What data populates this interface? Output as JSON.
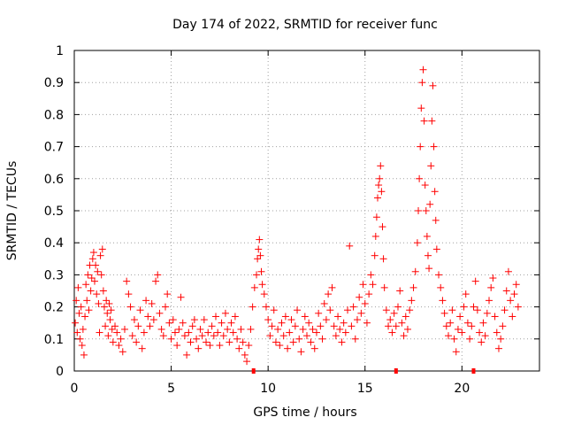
{
  "chart_data": {
    "type": "scatter",
    "title": "Day 174 of 2022, SRMTID for receiver func",
    "xlabel": "GPS time / hours",
    "ylabel": "SRMTID / TECUs",
    "xlim": [
      0,
      24
    ],
    "ylim": [
      0,
      1
    ],
    "xticks": [
      0,
      5,
      10,
      15,
      20
    ],
    "xtick_labels": [
      "0",
      "5",
      "10",
      "15",
      "20"
    ],
    "yticks": [
      0,
      0.1,
      0.2,
      0.3,
      0.4,
      0.5,
      0.6,
      0.7,
      0.8,
      0.9,
      1
    ],
    "ytick_labels": [
      "0",
      "0.1",
      "0.2",
      "0.3",
      "0.4",
      "0.5",
      "0.6",
      "0.7",
      "0.8",
      "0.9",
      "1"
    ],
    "grid": true,
    "marker": "+",
    "color": "#ff0000",
    "series": [
      {
        "name": "SRMTID",
        "points": [
          [
            0.05,
            0.15
          ],
          [
            0.1,
            0.22
          ],
          [
            0.15,
            0.12
          ],
          [
            0.2,
            0.26
          ],
          [
            0.25,
            0.18
          ],
          [
            0.3,
            0.1
          ],
          [
            0.35,
            0.2
          ],
          [
            0.4,
            0.08
          ],
          [
            0.45,
            0.13
          ],
          [
            0.5,
            0.05
          ],
          [
            0.55,
            0.17
          ],
          [
            0.6,
            0.27
          ],
          [
            0.65,
            0.22
          ],
          [
            0.7,
            0.3
          ],
          [
            0.75,
            0.19
          ],
          [
            0.8,
            0.33
          ],
          [
            0.85,
            0.25
          ],
          [
            0.9,
            0.29
          ],
          [
            0.95,
            0.35
          ],
          [
            1.0,
            0.37
          ],
          [
            1.05,
            0.28
          ],
          [
            1.1,
            0.33
          ],
          [
            1.15,
            0.24
          ],
          [
            1.2,
            0.31
          ],
          [
            1.25,
            0.21
          ],
          [
            1.3,
            0.12
          ],
          [
            1.35,
            0.36
          ],
          [
            1.4,
            0.3
          ],
          [
            1.45,
            0.38
          ],
          [
            1.5,
            0.25
          ],
          [
            1.55,
            0.2
          ],
          [
            1.6,
            0.14
          ],
          [
            1.65,
            0.22
          ],
          [
            1.7,
            0.18
          ],
          [
            1.75,
            0.11
          ],
          [
            1.8,
            0.21
          ],
          [
            1.85,
            0.16
          ],
          [
            1.9,
            0.19
          ],
          [
            1.95,
            0.13
          ],
          [
            2.0,
            0.09
          ],
          [
            2.1,
            0.14
          ],
          [
            2.2,
            0.12
          ],
          [
            2.3,
            0.08
          ],
          [
            2.4,
            0.1
          ],
          [
            2.5,
            0.06
          ],
          [
            2.6,
            0.13
          ],
          [
            2.7,
            0.28
          ],
          [
            2.8,
            0.24
          ],
          [
            2.9,
            0.2
          ],
          [
            3.0,
            0.11
          ],
          [
            3.1,
            0.16
          ],
          [
            3.2,
            0.09
          ],
          [
            3.3,
            0.14
          ],
          [
            3.4,
            0.19
          ],
          [
            3.5,
            0.07
          ],
          [
            3.6,
            0.12
          ],
          [
            3.7,
            0.22
          ],
          [
            3.8,
            0.17
          ],
          [
            3.9,
            0.14
          ],
          [
            4.0,
            0.21
          ],
          [
            4.1,
            0.16
          ],
          [
            4.2,
            0.28
          ],
          [
            4.3,
            0.3
          ],
          [
            4.4,
            0.18
          ],
          [
            4.5,
            0.13
          ],
          [
            4.6,
            0.11
          ],
          [
            4.7,
            0.2
          ],
          [
            4.8,
            0.24
          ],
          [
            4.9,
            0.15
          ],
          [
            5.0,
            0.1
          ],
          [
            5.1,
            0.16
          ],
          [
            5.2,
            0.12
          ],
          [
            5.3,
            0.08
          ],
          [
            5.4,
            0.13
          ],
          [
            5.5,
            0.23
          ],
          [
            5.6,
            0.15
          ],
          [
            5.7,
            0.11
          ],
          [
            5.8,
            0.05
          ],
          [
            5.9,
            0.12
          ],
          [
            6.0,
            0.09
          ],
          [
            6.1,
            0.14
          ],
          [
            6.2,
            0.16
          ],
          [
            6.3,
            0.1
          ],
          [
            6.4,
            0.07
          ],
          [
            6.5,
            0.13
          ],
          [
            6.6,
            0.11
          ],
          [
            6.7,
            0.16
          ],
          [
            6.8,
            0.09
          ],
          [
            6.9,
            0.12
          ],
          [
            7.0,
            0.08
          ],
          [
            7.1,
            0.14
          ],
          [
            7.2,
            0.11
          ],
          [
            7.3,
            0.17
          ],
          [
            7.4,
            0.12
          ],
          [
            7.5,
            0.08
          ],
          [
            7.6,
            0.15
          ],
          [
            7.7,
            0.11
          ],
          [
            7.8,
            0.18
          ],
          [
            7.9,
            0.13
          ],
          [
            8.0,
            0.09
          ],
          [
            8.1,
            0.15
          ],
          [
            8.2,
            0.12
          ],
          [
            8.3,
            0.17
          ],
          [
            8.4,
            0.1
          ],
          [
            8.5,
            0.07
          ],
          [
            8.6,
            0.13
          ],
          [
            8.7,
            0.09
          ],
          [
            8.8,
            0.05
          ],
          [
            8.9,
            0.03
          ],
          [
            9.0,
            0.08
          ],
          [
            9.1,
            0.13
          ],
          [
            9.2,
            0.2
          ],
          [
            9.3,
            0.26
          ],
          [
            9.4,
            0.3
          ],
          [
            9.45,
            0.35
          ],
          [
            9.5,
            0.38
          ],
          [
            9.55,
            0.41
          ],
          [
            9.6,
            0.36
          ],
          [
            9.65,
            0.31
          ],
          [
            9.7,
            0.27
          ],
          [
            9.8,
            0.24
          ],
          [
            9.9,
            0.2
          ],
          [
            10.0,
            0.16
          ],
          [
            10.1,
            0.11
          ],
          [
            10.2,
            0.14
          ],
          [
            10.3,
            0.19
          ],
          [
            10.4,
            0.09
          ],
          [
            10.5,
            0.13
          ],
          [
            10.6,
            0.08
          ],
          [
            10.7,
            0.15
          ],
          [
            10.8,
            0.11
          ],
          [
            10.9,
            0.17
          ],
          [
            11.0,
            0.07
          ],
          [
            11.1,
            0.12
          ],
          [
            11.2,
            0.16
          ],
          [
            11.3,
            0.09
          ],
          [
            11.4,
            0.14
          ],
          [
            11.5,
            0.19
          ],
          [
            11.6,
            0.1
          ],
          [
            11.7,
            0.06
          ],
          [
            11.8,
            0.13
          ],
          [
            11.9,
            0.17
          ],
          [
            12.0,
            0.11
          ],
          [
            12.1,
            0.15
          ],
          [
            12.2,
            0.09
          ],
          [
            12.3,
            0.13
          ],
          [
            12.4,
            0.07
          ],
          [
            12.5,
            0.12
          ],
          [
            12.6,
            0.18
          ],
          [
            12.7,
            0.14
          ],
          [
            12.8,
            0.1
          ],
          [
            12.9,
            0.21
          ],
          [
            13.0,
            0.16
          ],
          [
            13.1,
            0.24
          ],
          [
            13.2,
            0.19
          ],
          [
            13.3,
            0.26
          ],
          [
            13.4,
            0.14
          ],
          [
            13.5,
            0.11
          ],
          [
            13.6,
            0.17
          ],
          [
            13.7,
            0.13
          ],
          [
            13.8,
            0.09
          ],
          [
            13.9,
            0.15
          ],
          [
            14.0,
            0.12
          ],
          [
            14.1,
            0.19
          ],
          [
            14.2,
            0.39
          ],
          [
            14.3,
            0.14
          ],
          [
            14.4,
            0.2
          ],
          [
            14.5,
            0.1
          ],
          [
            14.6,
            0.16
          ],
          [
            14.7,
            0.23
          ],
          [
            14.8,
            0.18
          ],
          [
            14.9,
            0.27
          ],
          [
            15.0,
            0.21
          ],
          [
            15.1,
            0.15
          ],
          [
            15.2,
            0.24
          ],
          [
            15.3,
            0.3
          ],
          [
            15.4,
            0.27
          ],
          [
            15.5,
            0.36
          ],
          [
            15.55,
            0.42
          ],
          [
            15.6,
            0.48
          ],
          [
            15.65,
            0.54
          ],
          [
            15.7,
            0.58
          ],
          [
            15.75,
            0.6
          ],
          [
            15.8,
            0.64
          ],
          [
            15.85,
            0.56
          ],
          [
            15.9,
            0.45
          ],
          [
            15.95,
            0.35
          ],
          [
            16.0,
            0.26
          ],
          [
            16.1,
            0.19
          ],
          [
            16.2,
            0.14
          ],
          [
            16.3,
            0.16
          ],
          [
            16.4,
            0.12
          ],
          [
            16.5,
            0.18
          ],
          [
            16.6,
            0.14
          ],
          [
            16.7,
            0.2
          ],
          [
            16.8,
            0.25
          ],
          [
            16.9,
            0.15
          ],
          [
            17.0,
            0.11
          ],
          [
            17.1,
            0.17
          ],
          [
            17.2,
            0.13
          ],
          [
            17.3,
            0.19
          ],
          [
            17.4,
            0.22
          ],
          [
            17.5,
            0.26
          ],
          [
            17.6,
            0.31
          ],
          [
            17.7,
            0.4
          ],
          [
            17.75,
            0.5
          ],
          [
            17.8,
            0.6
          ],
          [
            17.85,
            0.7
          ],
          [
            17.9,
            0.82
          ],
          [
            17.95,
            0.9
          ],
          [
            18.0,
            0.94
          ],
          [
            18.05,
            0.78
          ],
          [
            18.1,
            0.58
          ],
          [
            18.15,
            0.5
          ],
          [
            18.2,
            0.42
          ],
          [
            18.25,
            0.36
          ],
          [
            18.3,
            0.32
          ],
          [
            18.35,
            0.52
          ],
          [
            18.4,
            0.64
          ],
          [
            18.45,
            0.78
          ],
          [
            18.5,
            0.89
          ],
          [
            18.55,
            0.7
          ],
          [
            18.6,
            0.56
          ],
          [
            18.65,
            0.47
          ],
          [
            18.7,
            0.38
          ],
          [
            18.8,
            0.3
          ],
          [
            18.9,
            0.26
          ],
          [
            19.0,
            0.22
          ],
          [
            19.1,
            0.18
          ],
          [
            19.2,
            0.14
          ],
          [
            19.3,
            0.11
          ],
          [
            19.4,
            0.15
          ],
          [
            19.5,
            0.19
          ],
          [
            19.6,
            0.1
          ],
          [
            19.7,
            0.06
          ],
          [
            19.8,
            0.13
          ],
          [
            19.9,
            0.17
          ],
          [
            20.0,
            0.12
          ],
          [
            20.1,
            0.2
          ],
          [
            20.2,
            0.24
          ],
          [
            20.3,
            0.15
          ],
          [
            20.4,
            0.1
          ],
          [
            20.5,
            0.14
          ],
          [
            20.6,
            0.2
          ],
          [
            20.7,
            0.28
          ],
          [
            20.8,
            0.19
          ],
          [
            20.9,
            0.12
          ],
          [
            21.0,
            0.09
          ],
          [
            21.1,
            0.15
          ],
          [
            21.2,
            0.11
          ],
          [
            21.3,
            0.18
          ],
          [
            21.4,
            0.22
          ],
          [
            21.5,
            0.26
          ],
          [
            21.6,
            0.29
          ],
          [
            21.7,
            0.17
          ],
          [
            21.8,
            0.12
          ],
          [
            21.9,
            0.07
          ],
          [
            22.0,
            0.1
          ],
          [
            22.1,
            0.14
          ],
          [
            22.2,
            0.19
          ],
          [
            22.3,
            0.25
          ],
          [
            22.4,
            0.31
          ],
          [
            22.5,
            0.22
          ],
          [
            22.6,
            0.17
          ],
          [
            22.7,
            0.24
          ],
          [
            22.8,
            0.27
          ],
          [
            22.9,
            0.2
          ]
        ]
      }
    ],
    "zero_markers": [
      9.25,
      16.6,
      20.6
    ]
  }
}
